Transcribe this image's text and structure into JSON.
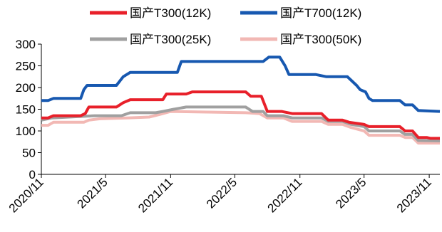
{
  "chart_data": {
    "type": "line",
    "title": "",
    "xlabel": "",
    "ylabel": "",
    "ylim": [
      0,
      300
    ],
    "yticks": [
      0,
      50,
      100,
      150,
      200,
      250,
      300
    ],
    "xticks": [
      "2020/11",
      "2021/5",
      "2021/11",
      "2022/5",
      "2022/11",
      "2023/5",
      "2023/11"
    ],
    "xlim": [
      "2020-11-01",
      "2023-12-01"
    ],
    "grid": false,
    "legend_position": "top",
    "series": [
      {
        "name": "国产T300(12K)",
        "color": "#e8202a",
        "points": [
          [
            "2020-11-01",
            130
          ],
          [
            "2020-11-20",
            130
          ],
          [
            "2020-12-05",
            135
          ],
          [
            "2021-02-20",
            135
          ],
          [
            "2021-03-05",
            140
          ],
          [
            "2021-03-15",
            155
          ],
          [
            "2021-06-01",
            155
          ],
          [
            "2021-06-20",
            165
          ],
          [
            "2021-07-10",
            172
          ],
          [
            "2021-10-10",
            172
          ],
          [
            "2021-10-20",
            185
          ],
          [
            "2021-12-15",
            185
          ],
          [
            "2022-01-01",
            190
          ],
          [
            "2022-06-01",
            190
          ],
          [
            "2022-06-15",
            180
          ],
          [
            "2022-07-15",
            180
          ],
          [
            "2022-08-01",
            145
          ],
          [
            "2022-09-10",
            145
          ],
          [
            "2022-10-10",
            140
          ],
          [
            "2023-01-01",
            140
          ],
          [
            "2023-01-20",
            125
          ],
          [
            "2023-03-01",
            125
          ],
          [
            "2023-03-20",
            120
          ],
          [
            "2023-05-01",
            115
          ],
          [
            "2023-05-15",
            110
          ],
          [
            "2023-08-10",
            110
          ],
          [
            "2023-08-25",
            100
          ],
          [
            "2023-09-15",
            100
          ],
          [
            "2023-10-01",
            85
          ],
          [
            "2023-10-25",
            85
          ],
          [
            "2023-11-05",
            83
          ],
          [
            "2023-12-01",
            83
          ]
        ]
      },
      {
        "name": "国产T700(12K)",
        "color": "#1758b0",
        "points": [
          [
            "2020-11-01",
            170
          ],
          [
            "2020-11-20",
            170
          ],
          [
            "2020-12-05",
            175
          ],
          [
            "2021-02-20",
            175
          ],
          [
            "2021-03-01",
            195
          ],
          [
            "2021-03-10",
            205
          ],
          [
            "2021-06-01",
            205
          ],
          [
            "2021-06-20",
            225
          ],
          [
            "2021-07-10",
            235
          ],
          [
            "2021-11-20",
            235
          ],
          [
            "2021-12-01",
            260
          ],
          [
            "2022-07-20",
            260
          ],
          [
            "2022-08-05",
            270
          ],
          [
            "2022-09-05",
            270
          ],
          [
            "2022-09-20",
            250
          ],
          [
            "2022-10-01",
            230
          ],
          [
            "2022-12-15",
            230
          ],
          [
            "2023-01-15",
            225
          ],
          [
            "2023-03-15",
            225
          ],
          [
            "2023-04-10",
            205
          ],
          [
            "2023-04-20",
            195
          ],
          [
            "2023-05-05",
            190
          ],
          [
            "2023-05-15",
            175
          ],
          [
            "2023-05-25",
            170
          ],
          [
            "2023-08-10",
            170
          ],
          [
            "2023-08-25",
            160
          ],
          [
            "2023-09-15",
            160
          ],
          [
            "2023-10-01",
            147
          ],
          [
            "2023-12-01",
            145
          ]
        ]
      },
      {
        "name": "国产T300(25K)",
        "color": "#a0a0a0",
        "points": [
          [
            "2020-11-01",
            125
          ],
          [
            "2020-12-01",
            130
          ],
          [
            "2021-04-01",
            135
          ],
          [
            "2021-06-15",
            135
          ],
          [
            "2021-07-10",
            142
          ],
          [
            "2021-09-20",
            142
          ],
          [
            "2021-10-10",
            145
          ],
          [
            "2021-11-10",
            150
          ],
          [
            "2021-12-15",
            155
          ],
          [
            "2022-06-01",
            155
          ],
          [
            "2022-06-20",
            145
          ],
          [
            "2022-07-20",
            145
          ],
          [
            "2022-08-01",
            135
          ],
          [
            "2022-09-15",
            135
          ],
          [
            "2022-10-10",
            130
          ],
          [
            "2023-01-01",
            130
          ],
          [
            "2023-01-20",
            122
          ],
          [
            "2023-03-01",
            122
          ],
          [
            "2023-03-25",
            115
          ],
          [
            "2023-05-01",
            110
          ],
          [
            "2023-05-15",
            100
          ],
          [
            "2023-08-10",
            100
          ],
          [
            "2023-08-25",
            92
          ],
          [
            "2023-09-15",
            92
          ],
          [
            "2023-10-01",
            78
          ],
          [
            "2023-12-01",
            77
          ]
        ]
      },
      {
        "name": "国产T300(50K)",
        "color": "#f2b8b4",
        "points": [
          [
            "2020-11-01",
            113
          ],
          [
            "2020-11-20",
            113
          ],
          [
            "2020-12-05",
            120
          ],
          [
            "2021-03-01",
            120
          ],
          [
            "2021-03-15",
            125
          ],
          [
            "2021-04-15",
            128
          ],
          [
            "2021-07-01",
            130
          ],
          [
            "2021-09-01",
            132
          ],
          [
            "2021-10-01",
            138
          ],
          [
            "2021-11-01",
            145
          ],
          [
            "2022-06-01",
            142
          ],
          [
            "2022-07-10",
            140
          ],
          [
            "2022-08-01",
            130
          ],
          [
            "2022-09-15",
            130
          ],
          [
            "2022-10-10",
            122
          ],
          [
            "2023-01-01",
            122
          ],
          [
            "2023-01-20",
            115
          ],
          [
            "2023-03-01",
            115
          ],
          [
            "2023-03-25",
            108
          ],
          [
            "2023-05-01",
            100
          ],
          [
            "2023-05-15",
            90
          ],
          [
            "2023-08-10",
            90
          ],
          [
            "2023-08-25",
            85
          ],
          [
            "2023-09-15",
            85
          ],
          [
            "2023-10-01",
            72
          ],
          [
            "2023-12-01",
            72
          ]
        ]
      }
    ]
  }
}
